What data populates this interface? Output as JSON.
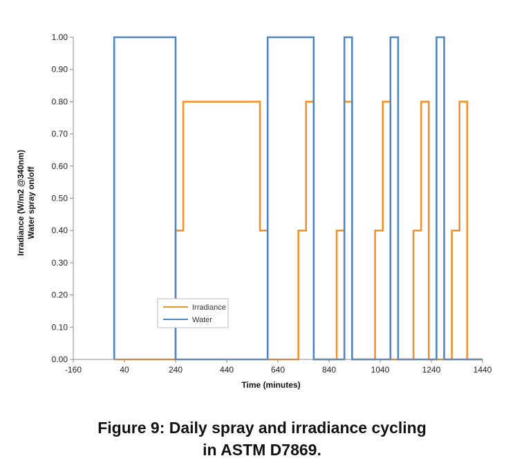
{
  "chart_data": {
    "type": "line",
    "title": "",
    "xlabel": "Time (minutes)",
    "ylabel_lines": [
      "Irradiance (W/m2 @340nm)",
      "Water spray on/off"
    ],
    "xlim": [
      -160,
      1440
    ],
    "ylim": [
      0,
      1
    ],
    "x_ticks": [
      -160,
      40,
      240,
      440,
      640,
      840,
      1040,
      1240,
      1440
    ],
    "y_ticks": [
      0,
      0.1,
      0.2,
      0.3,
      0.4,
      0.5,
      0.6,
      0.7,
      0.8,
      0.9,
      1.0
    ],
    "y_tick_labels": [
      "0.00",
      "0.10",
      "0.20",
      "0.30",
      "0.40",
      "0.50",
      "0.60",
      "0.70",
      "0.80",
      "0.90",
      "1.00"
    ],
    "grid": false,
    "legend_position": "bottom-left",
    "series": [
      {
        "name": "Irradiance",
        "color": "#f0922e",
        "x": [
          0,
          240,
          240,
          270,
          270,
          570,
          570,
          600,
          600,
          720,
          720,
          750,
          750,
          780,
          780,
          870,
          870,
          900,
          900,
          930,
          930,
          1020,
          1020,
          1050,
          1050,
          1080,
          1080,
          1170,
          1170,
          1200,
          1200,
          1230,
          1230,
          1320,
          1320,
          1350,
          1350,
          1380,
          1380,
          1440
        ],
        "y": [
          0,
          0,
          0.4,
          0.4,
          0.8,
          0.8,
          0.4,
          0.4,
          0,
          0,
          0.4,
          0.4,
          0.8,
          0.8,
          0,
          0,
          0.4,
          0.4,
          0.8,
          0.8,
          0,
          0,
          0.4,
          0.4,
          0.8,
          0.8,
          0,
          0,
          0.4,
          0.4,
          0.8,
          0.8,
          0,
          0,
          0.4,
          0.4,
          0.8,
          0.8,
          0,
          0
        ]
      },
      {
        "name": "Water",
        "color": "#4f86c6",
        "x": [
          0,
          0,
          240,
          240,
          600,
          600,
          780,
          780,
          900,
          900,
          930,
          930,
          1080,
          1080,
          1110,
          1110,
          1260,
          1260,
          1290,
          1290,
          1440
        ],
        "y": [
          0,
          1,
          1,
          0,
          0,
          1,
          1,
          0,
          0,
          1,
          1,
          0,
          0,
          1,
          1,
          0,
          0,
          1,
          1,
          0,
          0
        ]
      }
    ]
  },
  "caption": {
    "line1": "Figure 9: Daily spray and irradiance cycling",
    "line2": "in ASTM D7869."
  }
}
